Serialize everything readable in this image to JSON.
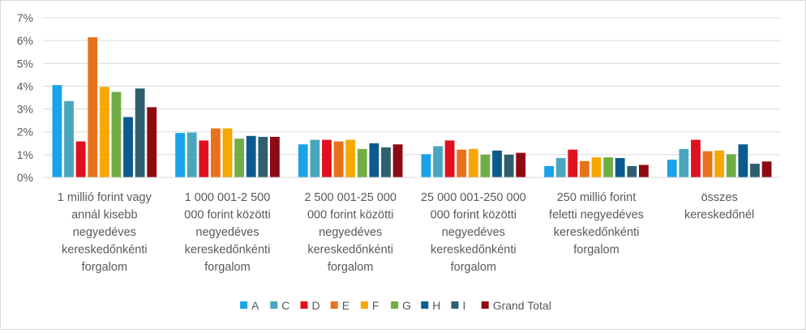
{
  "chart_data": {
    "type": "bar",
    "title": "",
    "xlabel": "",
    "ylabel": "",
    "ylim": [
      0,
      7
    ],
    "yticks": [
      "0%",
      "1%",
      "2%",
      "3%",
      "4%",
      "5%",
      "6%",
      "7%"
    ],
    "grid": true,
    "legend_position": "bottom",
    "categories": [
      "1 millió forint vagy annál kisebb negyedéves kereskedőnkénti forgalom",
      "1 000 001-2 500 000 forint közötti negyedéves kereskedőnkénti forgalom",
      "2 500 001-25 000 000 forint közötti negyedéves kereskedőnkénti forgalom",
      "25 000 001-250 000 000 forint közötti negyedéves kereskedőnkénti forgalom",
      "250 millió forint feletti negyedéves kereskedőnkénti forgalom",
      "összes kereskedőnél"
    ],
    "category_lines": [
      [
        "1 millió forint vagy",
        "annál kisebb",
        "negyedéves",
        "kereskedőnkénti",
        "forgalom"
      ],
      [
        "1 000 001-2 500",
        "000 forint közötti",
        "negyedéves",
        "kereskedőnkénti",
        "forgalom"
      ],
      [
        "2 500 001-25 000",
        "000 forint közötti",
        "negyedéves",
        "kereskedőnkénti",
        "forgalom"
      ],
      [
        "25 000 001-250 000",
        "000 forint közötti",
        "negyedéves",
        "kereskedőnkénti",
        "forgalom"
      ],
      [
        "250 millió forint",
        "feletti negyedéves",
        "kereskedőnkénti",
        "forgalom"
      ],
      [
        "összes",
        "kereskedőnél"
      ]
    ],
    "series": [
      {
        "name": "A",
        "color": "#1aa3e8",
        "values": [
          4.05,
          1.95,
          1.45,
          1.02,
          0.5,
          0.78
        ]
      },
      {
        "name": "C",
        "color": "#4aa6bf",
        "values": [
          3.35,
          1.97,
          1.65,
          1.37,
          0.85,
          1.25
        ]
      },
      {
        "name": "D",
        "color": "#e0101e",
        "values": [
          1.58,
          1.62,
          1.65,
          1.62,
          1.22,
          1.65
        ]
      },
      {
        "name": "E",
        "color": "#e8721c",
        "values": [
          6.15,
          2.15,
          1.58,
          1.22,
          0.72,
          1.15
        ]
      },
      {
        "name": "F",
        "color": "#f5a800",
        "values": [
          3.97,
          2.15,
          1.65,
          1.25,
          0.88,
          1.18
        ]
      },
      {
        "name": "G",
        "color": "#70ad47",
        "values": [
          3.75,
          1.7,
          1.25,
          1.0,
          0.88,
          1.02
        ]
      },
      {
        "name": "H",
        "color": "#0b5b8e",
        "values": [
          2.65,
          1.82,
          1.5,
          1.18,
          0.85,
          1.45
        ]
      },
      {
        "name": "I",
        "color": "#2f5f6e",
        "values": [
          3.9,
          1.78,
          1.32,
          1.0,
          0.5,
          0.6
        ]
      },
      {
        "name": "Grand Total",
        "color": "#8e0a12",
        "values": [
          3.08,
          1.78,
          1.45,
          1.08,
          0.55,
          0.7
        ]
      }
    ]
  }
}
